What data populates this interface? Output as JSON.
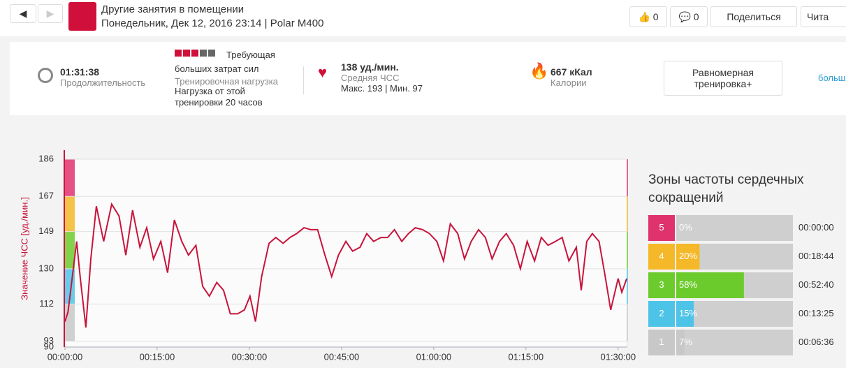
{
  "header": {
    "title": "Другие занятия в помещении",
    "subtitle": "Понедельник, Дек 12, 2016 23:14 | Polar M400",
    "likes": "0",
    "comments": "0",
    "share": "Поделиться",
    "read": "Чита"
  },
  "summary": {
    "duration": "01:31:38",
    "duration_label": "Продолжительность",
    "load_lines": [
      "Требующая",
      "больших затрат сил"
    ],
    "load_label": "Тренировочная нагрузка",
    "recovery_lines": [
      "Нагрузка от этой",
      "тренировки 20 часов"
    ],
    "avg_hr": "138 уд./мин.",
    "avg_hr_label": "Средняя ЧСС",
    "hr_range": "Макс. 193  |  Мин. 97",
    "calories": "667 кКал",
    "calories_label": "Калории",
    "benefit_lines": [
      "Равномерная",
      "тренировка+"
    ],
    "more": "больш"
  },
  "chart_data": {
    "type": "line",
    "y_label": "Значение ЧСС [уд./мин.]",
    "x": [
      0,
      0.5,
      1.9,
      2.5,
      3.4,
      4.2,
      5.1,
      6.3,
      7.6,
      8.8,
      9.9,
      11,
      12.2,
      13.3,
      14.4,
      15.6,
      16.7,
      17.8,
      19,
      20.1,
      21.3,
      22.4,
      23.5,
      24.7,
      25.8,
      26.9,
      28.1,
      29.2,
      30.1,
      31,
      32,
      33.2,
      34.3,
      35.5,
      36.6,
      37.7,
      38.9,
      40,
      41.1,
      42.3,
      43.4,
      44.5,
      45.7,
      46.8,
      48,
      49.1,
      50.2,
      51.4,
      52.5,
      53.6,
      54.8,
      55.9,
      57,
      58.2,
      59.3,
      60.5,
      61.6,
      62.7,
      63.9,
      65,
      66.1,
      67.3,
      68.4,
      69.5,
      70.7,
      71.8,
      73,
      74.1,
      75.2,
      76.4,
      77.5,
      78.6,
      79.8,
      80.9,
      82,
      83.2,
      84,
      84.9,
      85.8,
      86.9,
      87.8,
      88.8,
      90,
      90.6,
      91.4
    ],
    "series": [
      {
        "color": "#c8143c",
        "values": [
          103,
          108,
          144,
          125,
          100,
          135,
          162,
          144,
          163,
          157,
          137,
          160,
          141,
          151,
          135,
          144,
          128,
          155,
          144,
          137,
          142,
          121,
          116,
          123,
          119,
          107,
          107,
          109,
          116,
          103,
          126,
          143,
          146,
          143,
          146,
          148,
          151,
          150,
          150,
          137,
          126,
          137,
          144,
          139,
          141,
          148,
          144,
          146,
          146,
          150,
          144,
          148,
          151,
          150,
          148,
          144,
          134,
          153,
          148,
          135,
          144,
          150,
          146,
          135,
          144,
          148,
          142,
          130,
          144,
          134,
          146,
          142,
          144,
          146,
          134,
          141,
          119,
          144,
          148,
          144,
          128,
          109,
          125,
          118,
          125
        ]
      }
    ],
    "xlim": [
      0,
      91.5
    ],
    "xticks": [
      {
        "value": 0,
        "label": "00:00:00"
      },
      {
        "value": 15,
        "label": "00:15:00"
      },
      {
        "value": 30,
        "label": "00:30:00"
      },
      {
        "value": 45,
        "label": "00:45:00"
      },
      {
        "value": 60,
        "label": "01:00:00"
      },
      {
        "value": 75,
        "label": "01:15:00"
      },
      {
        "value": 90,
        "label": "01:30:00"
      }
    ],
    "ylim": [
      90,
      186
    ],
    "yticks": [
      186,
      167,
      149,
      130,
      112,
      93,
      90
    ],
    "grid": true
  },
  "zones": {
    "title": "Зоны частоты сердечных сокращений",
    "names": [
      "5",
      "4",
      "3",
      "2",
      "1"
    ],
    "colors": [
      "#e0336e",
      "#f5b829",
      "#6ccb2c",
      "#4ec3e8",
      "#c8c8c8"
    ],
    "values": [
      0,
      20,
      58,
      15,
      7
    ],
    "value_labels": [
      "0%",
      "20%",
      "58%",
      "15%",
      "7%"
    ],
    "times": [
      "00:00:00",
      "00:18:44",
      "00:52:40",
      "00:13:25",
      "00:06:36"
    ]
  }
}
